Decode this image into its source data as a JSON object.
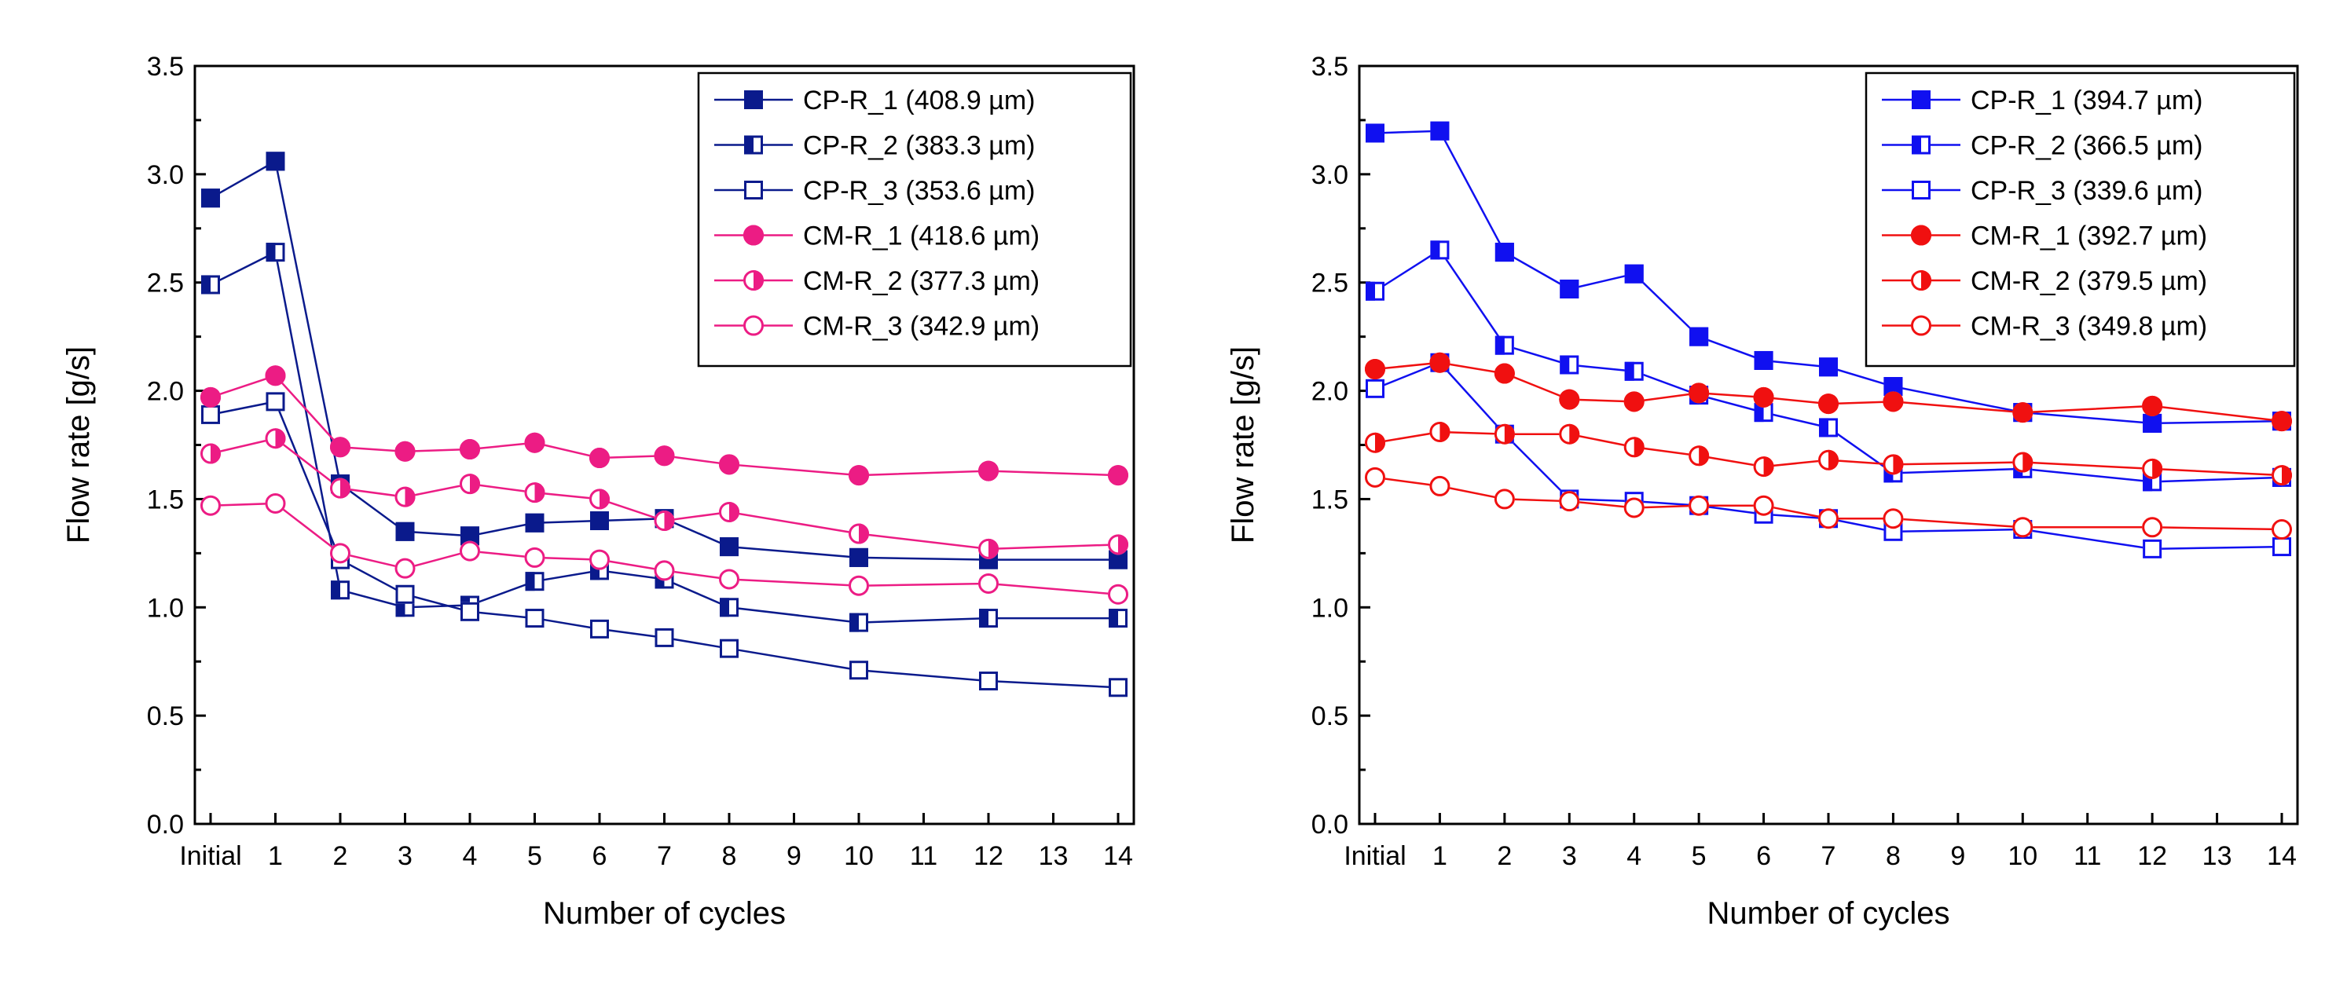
{
  "chart_data": [
    {
      "type": "line",
      "xlabel": "Number of cycles",
      "ylabel": "Flow rate [g/s]",
      "xlim": [
        0,
        14
      ],
      "ylim": [
        0.0,
        3.5
      ],
      "grid": false,
      "legend_position": "top-right",
      "x_ticks": [
        0,
        1,
        2,
        3,
        4,
        5,
        6,
        7,
        8,
        9,
        10,
        11,
        12,
        13,
        14
      ],
      "x_tick_labels": [
        "Initial",
        "1",
        "2",
        "3",
        "4",
        "5",
        "6",
        "7",
        "8",
        "9",
        "10",
        "11",
        "12",
        "13",
        "14"
      ],
      "y_ticks": [
        0.0,
        0.5,
        1.0,
        1.5,
        2.0,
        2.5,
        3.0,
        3.5
      ],
      "y_tick_labels": [
        "0.0",
        "0.5",
        "1.0",
        "1.5",
        "2.0",
        "2.5",
        "3.0",
        "3.5"
      ],
      "x": [
        0,
        1,
        2,
        3,
        4,
        5,
        6,
        7,
        8,
        10,
        12,
        14
      ],
      "series": [
        {
          "name": "CP-R_1 (408.9 µm)",
          "color": "#0a1a8c",
          "marker": "square",
          "fill": "full",
          "values": [
            2.89,
            3.06,
            1.57,
            1.35,
            1.33,
            1.39,
            1.4,
            1.41,
            1.28,
            1.23,
            1.22,
            1.22
          ]
        },
        {
          "name": "CP-R_2 (383.3 µm)",
          "color": "#0a1a8c",
          "marker": "square",
          "fill": "left",
          "values": [
            2.49,
            2.64,
            1.08,
            1.0,
            1.01,
            1.12,
            1.17,
            1.13,
            1.0,
            0.93,
            0.95,
            0.95
          ]
        },
        {
          "name": "CP-R_3 (353.6 µm)",
          "color": "#0a1a8c",
          "marker": "square",
          "fill": "none",
          "values": [
            1.89,
            1.95,
            1.22,
            1.06,
            0.98,
            0.95,
            0.9,
            0.86,
            0.81,
            0.71,
            0.66,
            0.63
          ]
        },
        {
          "name": "CM-R_1 (418.6 µm)",
          "color": "#ec1c84",
          "marker": "circle",
          "fill": "full",
          "values": [
            1.97,
            2.07,
            1.74,
            1.72,
            1.73,
            1.76,
            1.69,
            1.7,
            1.66,
            1.61,
            1.63,
            1.61
          ]
        },
        {
          "name": "CM-R_2 (377.3 µm)",
          "color": "#ec1c84",
          "marker": "circle",
          "fill": "right",
          "values": [
            1.71,
            1.78,
            1.55,
            1.51,
            1.57,
            1.53,
            1.5,
            1.4,
            1.44,
            1.34,
            1.27,
            1.29
          ]
        },
        {
          "name": "CM-R_3 (342.9 µm)",
          "color": "#ec1c84",
          "marker": "circle",
          "fill": "none",
          "values": [
            1.47,
            1.48,
            1.25,
            1.18,
            1.26,
            1.23,
            1.22,
            1.17,
            1.13,
            1.1,
            1.11,
            1.06
          ]
        }
      ]
    },
    {
      "type": "line",
      "xlabel": "Number of cycles",
      "ylabel": "Flow rate [g/s]",
      "xlim": [
        0,
        14
      ],
      "ylim": [
        0.0,
        3.5
      ],
      "grid": false,
      "legend_position": "top-right",
      "x_ticks": [
        0,
        1,
        2,
        3,
        4,
        5,
        6,
        7,
        8,
        9,
        10,
        11,
        12,
        13,
        14
      ],
      "x_tick_labels": [
        "Initial",
        "1",
        "2",
        "3",
        "4",
        "5",
        "6",
        "7",
        "8",
        "9",
        "10",
        "11",
        "12",
        "13",
        "14"
      ],
      "y_ticks": [
        0.0,
        0.5,
        1.0,
        1.5,
        2.0,
        2.5,
        3.0,
        3.5
      ],
      "y_tick_labels": [
        "0.0",
        "0.5",
        "1.0",
        "1.5",
        "2.0",
        "2.5",
        "3.0",
        "3.5"
      ],
      "x": [
        0,
        1,
        2,
        3,
        4,
        5,
        6,
        7,
        8,
        10,
        12,
        14
      ],
      "series": [
        {
          "name": "CP-R_1 (394.7 µm)",
          "color": "#1010f0",
          "marker": "square",
          "fill": "full",
          "values": [
            3.19,
            3.2,
            2.64,
            2.47,
            2.54,
            2.25,
            2.14,
            2.11,
            2.02,
            1.9,
            1.85,
            1.86
          ]
        },
        {
          "name": "CP-R_2 (366.5 µm)",
          "color": "#1010f0",
          "marker": "square",
          "fill": "left",
          "values": [
            2.46,
            2.65,
            2.21,
            2.12,
            2.09,
            1.98,
            1.9,
            1.83,
            1.62,
            1.64,
            1.58,
            1.6
          ]
        },
        {
          "name": "CP-R_3 (339.6 µm)",
          "color": "#1010f0",
          "marker": "square",
          "fill": "none",
          "values": [
            2.01,
            2.13,
            1.8,
            1.5,
            1.49,
            1.47,
            1.43,
            1.41,
            1.35,
            1.36,
            1.27,
            1.28
          ]
        },
        {
          "name": "CM-R_1 (392.7 µm)",
          "color": "#f01010",
          "marker": "circle",
          "fill": "full",
          "values": [
            2.1,
            2.13,
            2.08,
            1.96,
            1.95,
            1.99,
            1.97,
            1.94,
            1.95,
            1.9,
            1.93,
            1.86
          ]
        },
        {
          "name": "CM-R_2 (379.5 µm)",
          "color": "#f01010",
          "marker": "circle",
          "fill": "right",
          "values": [
            1.76,
            1.81,
            1.8,
            1.8,
            1.74,
            1.7,
            1.65,
            1.68,
            1.66,
            1.67,
            1.64,
            1.61
          ]
        },
        {
          "name": "CM-R_3 (349.8 µm)",
          "color": "#f01010",
          "marker": "circle",
          "fill": "none",
          "values": [
            1.6,
            1.56,
            1.5,
            1.49,
            1.46,
            1.47,
            1.47,
            1.41,
            1.41,
            1.37,
            1.37,
            1.36
          ]
        }
      ]
    }
  ]
}
